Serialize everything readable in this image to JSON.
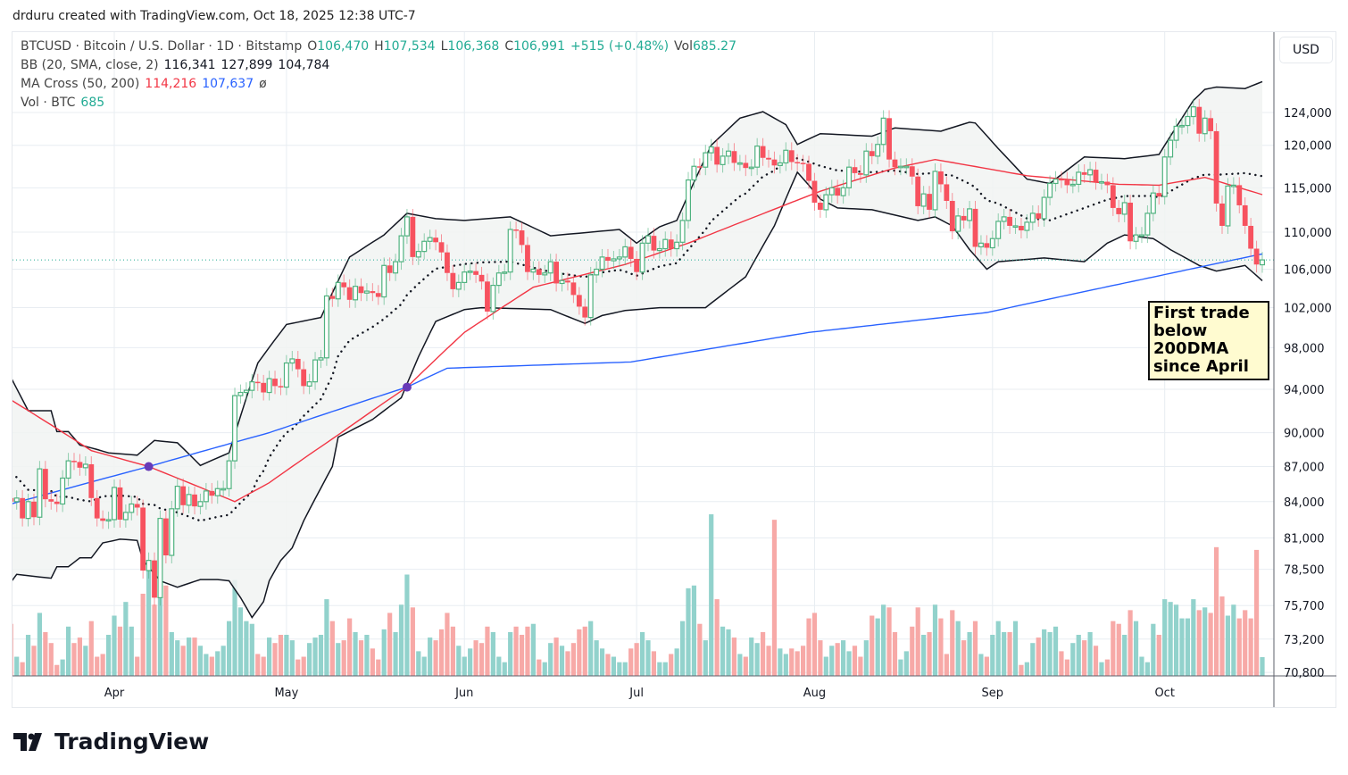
{
  "credit": "drduru created with TradingView.com, Oct 18, 2025 12:38 UTC-7",
  "legend": {
    "symbol": "BTCUSD · Bitcoin / U.S. Dollar · 1D · Bitstamp",
    "o_label": "O",
    "o": "106,470",
    "h_label": "H",
    "h": "107,534",
    "l_label": "L",
    "l": "106,368",
    "c_label": "C",
    "c": "106,991",
    "change": "+515 (+0.48%)",
    "vol_label": "Vol",
    "vol": "685.27",
    "bb_label": "BB (20, SMA, close, 2)",
    "bb_mid": "116,341",
    "bb_upper": "127,899",
    "bb_lower": "104,784",
    "ma_label": "MA Cross (50, 200)",
    "ma50": "114,216",
    "ma200": "107,637",
    "ma_sym": "ø",
    "volbtc_label": "Vol · BTC",
    "volbtc": "685"
  },
  "currency_button": "USD",
  "annotation": "First trade below 200DMA since April",
  "logo": "TradingView",
  "colors": {
    "up": "#4fb27f",
    "down": "#f7525f",
    "vol_up": "#92d2cc",
    "vol_down": "#f7a9a7",
    "sma50": "#f23645",
    "sma200": "#2962ff",
    "bands": "#131722",
    "band_fill": "#f1f3f2",
    "cross": "#673ab7",
    "last_price": "#22ab94",
    "grid": "#e8edf2"
  },
  "chart_data": {
    "type": "candlestick",
    "title": "BTCUSD · Bitcoin / U.S. Dollar · 1D · Bitstamp",
    "units": "USD thousands (close), BTC (volume)",
    "y_scale": "log",
    "ylim": [
      70.8,
      128
    ],
    "y_ticks": [
      "124,000",
      "120,000",
      "115,000",
      "110,000",
      "106,000",
      "102,000",
      "98,000",
      "94,000",
      "90,000",
      "87,000",
      "84,000",
      "81,000",
      "78,500",
      "75,700",
      "73,200",
      "70,800"
    ],
    "x_ticks": [
      {
        "label": "Apr",
        "day": 18
      },
      {
        "label": "May",
        "day": 48
      },
      {
        "label": "Jun",
        "day": 79
      },
      {
        "label": "Jul",
        "day": 109
      },
      {
        "label": "Aug",
        "day": 140
      },
      {
        "label": "Sep",
        "day": 171
      },
      {
        "label": "Oct",
        "day": 201
      }
    ],
    "first_open": 84.3,
    "last_open": 106.47,
    "close": [
      84.0,
      84.3,
      82.6,
      84.0,
      82.7,
      86.8,
      84.2,
      84.0,
      83.8,
      86.0,
      87.5,
      87.4,
      86.9,
      87.2,
      84.3,
      82.6,
      82.4,
      82.5,
      85.2,
      82.5,
      83.1,
      83.8,
      83.5,
      78.4,
      79.2,
      76.3,
      82.6,
      79.6,
      83.4,
      85.3,
      83.7,
      84.6,
      83.6,
      84.0,
      84.9,
      84.5,
      85.1,
      85.1,
      87.5,
      93.4,
      93.7,
      93.9,
      94.7,
      94.6,
      93.7,
      95.0,
      94.3,
      94.2,
      96.5,
      96.9,
      95.9,
      94.3,
      94.7,
      96.8,
      97.0,
      103.2,
      102.9,
      104.6,
      104.1,
      102.8,
      104.2,
      103.5,
      103.7,
      103.5,
      103.1,
      106.4,
      105.6,
      106.8,
      109.6,
      111.7,
      107.3,
      107.9,
      109.0,
      109.4,
      108.9,
      107.8,
      105.6,
      103.9,
      104.6,
      105.7,
      105.8,
      105.4,
      104.7,
      101.6,
      104.3,
      105.6,
      105.7,
      110.3,
      110.2,
      108.6,
      105.7,
      106.0,
      105.4,
      105.6,
      106.8,
      104.5,
      104.8,
      104.6,
      103.3,
      102.1,
      101.0,
      105.4,
      106.0,
      107.3,
      106.9,
      107.1,
      107.3,
      108.4,
      107.1,
      105.7,
      108.8,
      109.6,
      108.0,
      108.2,
      109.2,
      108.2,
      108.9,
      111.3,
      115.9,
      117.5,
      117.4,
      119.1,
      119.8,
      117.7,
      118.7,
      119.3,
      117.9,
      117.9,
      117.3,
      117.4,
      119.9,
      118.5,
      118.3,
      117.6,
      117.9,
      119.4,
      118.0,
      117.9,
      117.8,
      115.8,
      113.3,
      112.5,
      114.2,
      115.0,
      114.1,
      115.0,
      117.4,
      116.7,
      116.5,
      119.3,
      118.7,
      120.1,
      123.3,
      118.3,
      117.4,
      117.5,
      117.5,
      116.3,
      112.9,
      114.3,
      112.5,
      116.9,
      115.4,
      113.5,
      110.1,
      111.8,
      111.3,
      112.6,
      108.4,
      108.8,
      108.3,
      109.3,
      111.2,
      111.7,
      110.7,
      110.7,
      110.2,
      111.1,
      112.1,
      111.5,
      113.9,
      115.5,
      116.0,
      115.9,
      115.3,
      115.4,
      116.8,
      116.5,
      117.1,
      115.7,
      115.7,
      115.3,
      112.7,
      112.0,
      113.3,
      109.0,
      109.7,
      109.7,
      112.1,
      114.4,
      114.0,
      118.6,
      120.6,
      122.3,
      122.4,
      123.5,
      124.7,
      121.4,
      123.3,
      121.7,
      113.2,
      110.7,
      115.2,
      115.3,
      113.0,
      110.7,
      108.2,
      106.5,
      106.991
    ],
    "volume": [
      1900,
      700,
      500,
      1500,
      1100,
      2300,
      1600,
      1200,
      400,
      600,
      1800,
      1200,
      1400,
      1100,
      2000,
      700,
      800,
      1500,
      2200,
      1800,
      2700,
      1800,
      700,
      3000,
      4200,
      2600,
      3900,
      3300,
      1600,
      1300,
      1100,
      1400,
      1400,
      1100,
      800,
      700,
      900,
      1100,
      2000,
      3500,
      2500,
      2000,
      1900,
      800,
      700,
      1400,
      1200,
      1500,
      1500,
      1300,
      600,
      700,
      1200,
      1400,
      1500,
      2800,
      2000,
      1200,
      1300,
      2100,
      1600,
      1300,
      1500,
      1000,
      600,
      1700,
      2300,
      1600,
      2600,
      3700,
      2500,
      900,
      700,
      1400,
      1300,
      1700,
      2300,
      1800,
      1100,
      700,
      1000,
      1300,
      1200,
      1800,
      1600,
      700,
      500,
      1600,
      1800,
      1500,
      1800,
      1900,
      600,
      500,
      1200,
      1400,
      1100,
      900,
      1200,
      1700,
      1800,
      2000,
      1300,
      1000,
      800,
      700,
      500,
      500,
      1000,
      1200,
      1600,
      1300,
      900,
      500,
      500,
      800,
      1000,
      2000,
      3200,
      3300,
      1900,
      1300,
      5900,
      2800,
      1800,
      1700,
      1400,
      800,
      700,
      1400,
      1200,
      1600,
      1100,
      5700,
      1000,
      800,
      1000,
      900,
      1100,
      2100,
      2300,
      1300,
      700,
      1100,
      1200,
      1300,
      900,
      1100,
      700,
      1300,
      2200,
      2100,
      2600,
      2500,
      1600,
      600,
      900,
      1800,
      2500,
      1500,
      1600,
      2600,
      2100,
      800,
      2400,
      2000,
      1300,
      1600,
      2000,
      800,
      700,
      1500,
      2000,
      1600,
      1600,
      2000,
      400,
      500,
      1200,
      1400,
      1700,
      1600,
      1800,
      900,
      600,
      1200,
      1500,
      1300,
      1600,
      1100,
      500,
      600,
      2000,
      1900,
      1500,
      2400,
      2000,
      700,
      500,
      1900,
      1500,
      2800,
      2700,
      2600,
      2100,
      2100,
      2800,
      2400,
      2500,
      2300,
      4700,
      2900,
      2200,
      2600,
      2100,
      2400,
      2100,
      4600,
      685
    ],
    "sma50": [
      [
        0,
        93.0
      ],
      [
        14,
        88.4
      ],
      [
        24,
        87.0
      ],
      [
        39,
        84.0
      ],
      [
        45,
        85.6
      ],
      [
        57,
        89.8
      ],
      [
        69,
        94.2
      ],
      [
        79,
        99.5
      ],
      [
        91,
        104.1
      ],
      [
        107,
        106.5
      ],
      [
        118,
        108.8
      ],
      [
        130,
        111.8
      ],
      [
        141,
        114.6
      ],
      [
        154,
        117.3
      ],
      [
        161,
        118.3
      ],
      [
        177,
        116.4
      ],
      [
        193,
        115.4
      ],
      [
        200,
        115.3
      ],
      [
        208,
        116.2
      ],
      [
        218,
        114.216
      ]
    ],
    "sma200": [
      [
        0,
        83.8
      ],
      [
        24,
        87.0
      ],
      [
        45,
        90.0
      ],
      [
        69,
        94.2
      ],
      [
        76,
        96.0
      ],
      [
        108,
        96.6
      ],
      [
        139,
        99.5
      ],
      [
        170,
        101.5
      ],
      [
        200,
        105.3
      ],
      [
        218,
        107.637
      ]
    ],
    "bb_upper": [
      [
        0,
        95.1
      ],
      [
        3,
        92.0
      ],
      [
        7,
        92.0
      ],
      [
        8,
        90.1
      ],
      [
        10,
        90.1
      ],
      [
        12,
        88.9
      ],
      [
        15,
        88.5
      ],
      [
        17,
        88.2
      ],
      [
        22,
        88.0
      ],
      [
        25,
        89.3
      ],
      [
        29,
        89.1
      ],
      [
        33,
        87.1
      ],
      [
        38,
        88.2
      ],
      [
        43,
        96.5
      ],
      [
        48,
        100.3
      ],
      [
        54,
        101.0
      ],
      [
        59,
        107.3
      ],
      [
        65,
        109.7
      ],
      [
        69,
        112.1
      ],
      [
        74,
        111.5
      ],
      [
        79,
        111.3
      ],
      [
        87,
        111.7
      ],
      [
        94,
        109.6
      ],
      [
        106,
        110.3
      ],
      [
        109,
        108.8
      ],
      [
        113,
        110.6
      ],
      [
        116,
        111.3
      ],
      [
        122,
        120.0
      ],
      [
        127,
        123.3
      ],
      [
        131,
        124.1
      ],
      [
        135,
        122.5
      ],
      [
        137,
        120.1
      ],
      [
        141,
        121.4
      ],
      [
        150,
        121.1
      ],
      [
        154,
        122.1
      ],
      [
        162,
        121.7
      ],
      [
        167,
        122.8
      ],
      [
        168,
        122.7
      ],
      [
        172,
        119.6
      ],
      [
        177,
        116.0
      ],
      [
        181,
        115.5
      ],
      [
        187,
        118.6
      ],
      [
        194,
        118.4
      ],
      [
        200,
        118.9
      ],
      [
        206,
        125.5
      ],
      [
        208,
        126.9
      ],
      [
        210,
        127.2
      ],
      [
        215,
        127.0
      ],
      [
        218,
        127.899
      ]
    ],
    "bb_lower": [
      [
        0,
        77.5
      ],
      [
        1,
        78.1
      ],
      [
        7,
        77.8
      ],
      [
        8,
        78.7
      ],
      [
        10,
        78.7
      ],
      [
        12,
        79.4
      ],
      [
        14,
        79.4
      ],
      [
        16,
        80.6
      ],
      [
        19,
        80.9
      ],
      [
        22,
        80.8
      ],
      [
        23,
        79.2
      ],
      [
        26,
        77.6
      ],
      [
        29,
        77.1
      ],
      [
        33,
        77.7
      ],
      [
        36,
        77.7
      ],
      [
        38,
        77.6
      ],
      [
        40,
        76.3
      ],
      [
        42,
        74.8
      ],
      [
        44,
        76.0
      ],
      [
        45,
        77.6
      ],
      [
        47,
        79.2
      ],
      [
        49,
        80.2
      ],
      [
        51,
        82.4
      ],
      [
        56,
        87.0
      ],
      [
        57,
        89.6
      ],
      [
        63,
        91.2
      ],
      [
        68,
        93.2
      ],
      [
        71,
        97.1
      ],
      [
        74,
        100.6
      ],
      [
        79,
        101.8
      ],
      [
        82,
        102.0
      ],
      [
        94,
        101.8
      ],
      [
        100,
        100.4
      ],
      [
        103,
        101.2
      ],
      [
        107,
        101.7
      ],
      [
        113,
        102.0
      ],
      [
        121,
        102.0
      ],
      [
        128,
        105.2
      ],
      [
        133,
        110.7
      ],
      [
        137,
        116.8
      ],
      [
        139,
        115.3
      ],
      [
        141,
        113.7
      ],
      [
        144,
        112.7
      ],
      [
        150,
        112.5
      ],
      [
        158,
        111.3
      ],
      [
        161,
        111.7
      ],
      [
        164,
        110.7
      ],
      [
        167,
        108.1
      ],
      [
        170,
        106.0
      ],
      [
        172,
        106.8
      ],
      [
        180,
        107.2
      ],
      [
        187,
        106.8
      ],
      [
        191,
        108.8
      ],
      [
        194,
        109.7
      ],
      [
        199,
        109.3
      ],
      [
        202,
        108.1
      ],
      [
        207,
        106.4
      ],
      [
        210,
        105.8
      ],
      [
        215,
        106.4
      ],
      [
        218,
        104.784
      ]
    ],
    "ma_crosses": [
      {
        "day": 24,
        "value": 87.0
      },
      {
        "day": 69,
        "value": 94.2
      }
    ],
    "last_price": 106.991
  }
}
